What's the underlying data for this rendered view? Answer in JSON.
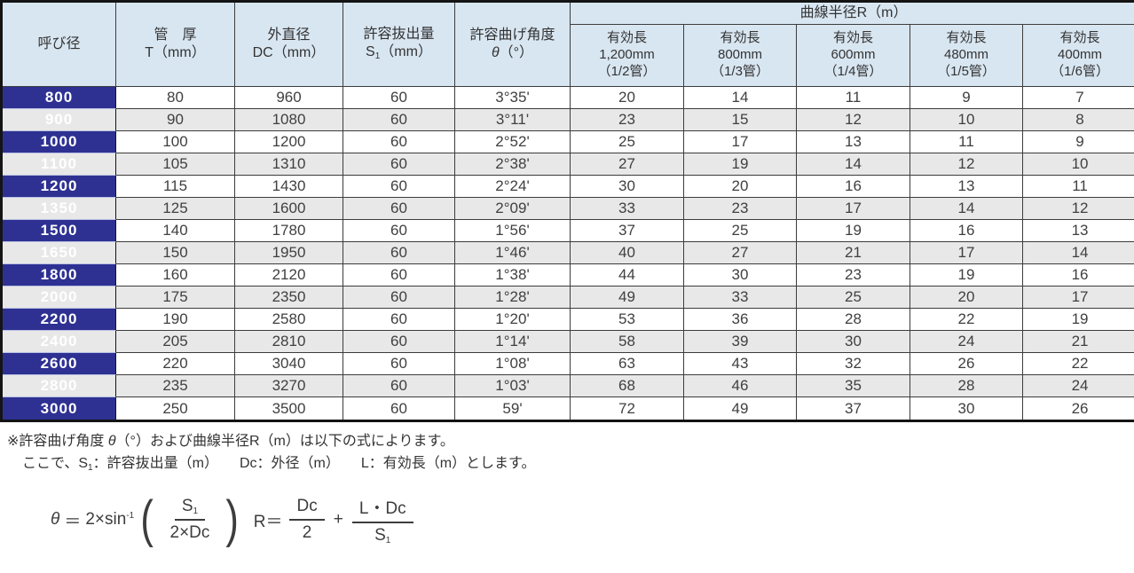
{
  "colors": {
    "navy_column": "#2e3192",
    "header_blue": "#d8e6f1",
    "row_alt_gray": "#e8e8e8",
    "border_dark": "#141414"
  },
  "table": {
    "group_header": "曲線半径R（m）",
    "left_headers": {
      "nominal": "呼び径",
      "thickness_l1": "管　厚",
      "thickness_l2": "T（mm）",
      "outer_dia_l1": "外直径",
      "outer_dia_l2": "DC（mm）",
      "pullout_l1": "許容抜出量",
      "pullout_base": "S",
      "pullout_sub": "1",
      "pullout_unit": "（mm）",
      "angle_l1": "許容曲げ角度",
      "angle_theta": "θ",
      "angle_unit": "（°）"
    },
    "radius_headers": [
      {
        "l1": "有効長",
        "l2": "1,200mm",
        "l3": "（1/2管）"
      },
      {
        "l1": "有効長",
        "l2": "800mm",
        "l3": "（1/3管）"
      },
      {
        "l1": "有効長",
        "l2": "600mm",
        "l3": "（1/4管）"
      },
      {
        "l1": "有効長",
        "l2": "480mm",
        "l3": "（1/5管）"
      },
      {
        "l1": "有効長",
        "l2": "400mm",
        "l3": "（1/6管）"
      }
    ],
    "rows": [
      [
        "800",
        "80",
        "960",
        "60",
        "3°35'",
        "20",
        "14",
        "11",
        "9",
        "7"
      ],
      [
        "900",
        "90",
        "1080",
        "60",
        "3°11'",
        "23",
        "15",
        "12",
        "10",
        "8"
      ],
      [
        "1000",
        "100",
        "1200",
        "60",
        "2°52'",
        "25",
        "17",
        "13",
        "11",
        "9"
      ],
      [
        "1100",
        "105",
        "1310",
        "60",
        "2°38'",
        "27",
        "19",
        "14",
        "12",
        "10"
      ],
      [
        "1200",
        "115",
        "1430",
        "60",
        "2°24'",
        "30",
        "20",
        "16",
        "13",
        "11"
      ],
      [
        "1350",
        "125",
        "1600",
        "60",
        "2°09'",
        "33",
        "23",
        "17",
        "14",
        "12"
      ],
      [
        "1500",
        "140",
        "1780",
        "60",
        "1°56'",
        "37",
        "25",
        "19",
        "16",
        "13"
      ],
      [
        "1650",
        "150",
        "1950",
        "60",
        "1°46'",
        "40",
        "27",
        "21",
        "17",
        "14"
      ],
      [
        "1800",
        "160",
        "2120",
        "60",
        "1°38'",
        "44",
        "30",
        "23",
        "19",
        "16"
      ],
      [
        "2000",
        "175",
        "2350",
        "60",
        "1°28'",
        "49",
        "33",
        "25",
        "20",
        "17"
      ],
      [
        "2200",
        "190",
        "2580",
        "60",
        "1°20'",
        "53",
        "36",
        "28",
        "22",
        "19"
      ],
      [
        "2400",
        "205",
        "2810",
        "60",
        "1°14'",
        "58",
        "39",
        "30",
        "24",
        "21"
      ],
      [
        "2600",
        "220",
        "3040",
        "60",
        "1°08'",
        "63",
        "43",
        "32",
        "26",
        "22"
      ],
      [
        "2800",
        "235",
        "3270",
        "60",
        "1°03'",
        "68",
        "46",
        "35",
        "28",
        "24"
      ],
      [
        "3000",
        "250",
        "3500",
        "60",
        "59'",
        "72",
        "49",
        "37",
        "30",
        "26"
      ]
    ]
  },
  "notes": {
    "line1_pre": "※許容曲げ角度 ",
    "line1_theta": "θ",
    "line1_post": "（°）および曲線半径R（m）は以下の式によります。",
    "line2_pre": "ここで、S",
    "line2_sub": "1",
    "line2_post": "：許容抜出量（m）　　Dc：外径（m）　　L：有効長（m）とします。"
  },
  "formula": {
    "theta": "θ",
    "theta_eq": "＝",
    "coeff": "2×sin",
    "exponent": "-1",
    "paren_open": "(",
    "frac_num_base": "S",
    "frac_num_sub": "1",
    "frac_den": "2×Dc",
    "paren_close": ")",
    "r_lhs": "R＝",
    "f1_num": "Dc",
    "f1_den": "2",
    "plus": "+",
    "f2_num": "L・Dc",
    "f2_den_base": "S",
    "f2_den_sub": "1"
  }
}
